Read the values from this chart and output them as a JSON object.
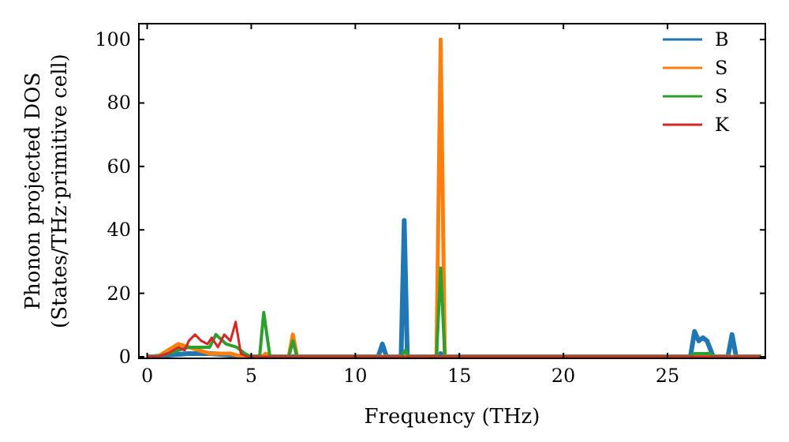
{
  "chart_data": {
    "type": "line",
    "xlabel": "Frequency (THz)",
    "ylabel": "Phonon projected DOS\n(States/THz·primitive cell)",
    "xlim": [
      -0.4,
      29.7
    ],
    "ylim": [
      -0.5,
      105
    ],
    "xticks": [
      0,
      5,
      10,
      15,
      20,
      25
    ],
    "yticks": [
      0,
      20,
      40,
      60,
      80,
      100
    ],
    "grid": false,
    "legend": "top right",
    "marker": "none",
    "line_style": "solid",
    "series": [
      {
        "name": "B",
        "color": "#1f77b4",
        "x": [
          0,
          0.3,
          1,
          2,
          3,
          4,
          4.5,
          11.1,
          11.3,
          11.5,
          12.2,
          12.35,
          12.5,
          13.9,
          14.1,
          14.3,
          26.1,
          26.3,
          26.5,
          26.7,
          26.9,
          27.2,
          27.9,
          28.1,
          28.3,
          29.5
        ],
        "values": [
          0,
          0,
          0.5,
          1,
          1,
          0.5,
          0,
          0,
          4,
          0,
          0,
          43,
          0,
          0,
          1,
          0,
          0,
          8,
          5,
          6,
          5,
          0,
          0,
          7,
          0,
          0
        ]
      },
      {
        "name": "S",
        "color": "#ff7f0e",
        "x": [
          0,
          0.5,
          1,
          1.5,
          2,
          2.5,
          3,
          3.5,
          4,
          4.5,
          5.5,
          5.7,
          5.9,
          6.8,
          7.0,
          7.2,
          13.9,
          14.1,
          14.3,
          29.5
        ],
        "values": [
          0,
          0,
          2,
          4,
          3,
          2,
          1,
          1,
          1,
          0,
          0,
          1,
          0,
          0,
          7,
          0,
          0,
          100,
          0,
          0
        ]
      },
      {
        "name": "S",
        "color": "#2ca02c",
        "x": [
          0,
          0.5,
          1,
          1.5,
          2,
          2.5,
          3,
          3.3,
          3.8,
          4.3,
          4.7,
          5.0,
          5.4,
          5.6,
          5.9,
          6.8,
          7.0,
          7.2,
          12.2,
          12.4,
          12.6,
          13.9,
          14.1,
          14.3,
          26,
          26.3,
          27,
          27.3,
          29.5
        ],
        "values": [
          0,
          0,
          1,
          2,
          3,
          3,
          3,
          7,
          4,
          3,
          1,
          0,
          0,
          14,
          0,
          0,
          5,
          0,
          0,
          2,
          0,
          0,
          28,
          0,
          0,
          1,
          1,
          0,
          0
        ]
      },
      {
        "name": "K",
        "color": "#d62728",
        "x": [
          0,
          0.5,
          1,
          1.5,
          1.8,
          2,
          2.3,
          2.6,
          2.9,
          3.1,
          3.4,
          3.7,
          4.0,
          4.25,
          4.5,
          4.8,
          29.5
        ],
        "values": [
          0,
          0,
          1,
          3,
          2,
          5,
          7,
          5,
          4,
          6,
          3,
          7,
          5,
          11,
          1,
          0,
          0
        ]
      }
    ]
  }
}
